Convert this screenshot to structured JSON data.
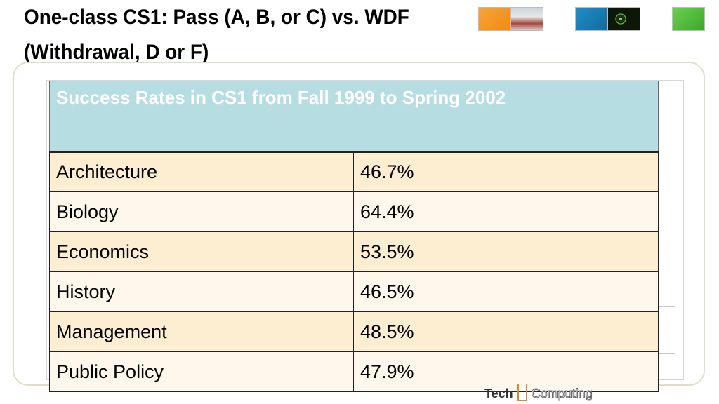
{
  "slide": {
    "title": "One-class CS1: Pass (A, B, or C) vs. WDF (Withdrawal, D or F)"
  },
  "table": {
    "caption": "Success Rates in CS1 from Fall 1999 to Spring 2002",
    "rows": [
      {
        "major": "Architecture",
        "rate": "46.7%"
      },
      {
        "major": "Biology",
        "rate": "64.4%"
      },
      {
        "major": "Economics",
        "rate": "53.5%"
      },
      {
        "major": "History",
        "rate": "46.5%"
      },
      {
        "major": "Management",
        "rate": "48.5%"
      },
      {
        "major": "Public Policy",
        "rate": "47.9%"
      }
    ]
  },
  "logo": {
    "word1": "Tech",
    "word2": "Computing"
  },
  "colors": {
    "header_bg": "#b6dde1",
    "row_odd": "#fdeed2",
    "row_even": "#fef8ec"
  }
}
